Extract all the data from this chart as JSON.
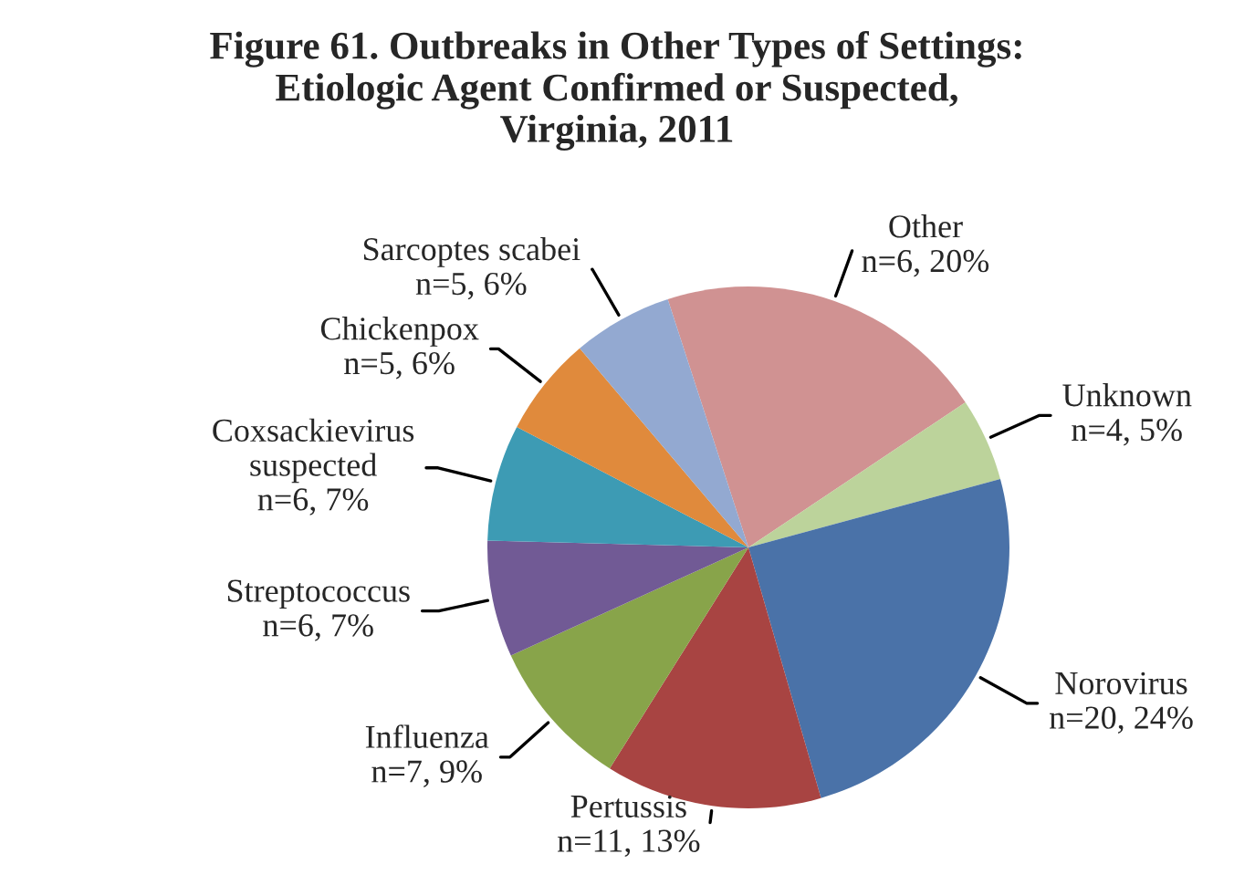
{
  "chart_data": {
    "type": "pie",
    "title": "Figure 61. Outbreaks in Other Types of Settings:\nEtiologic Agent Confirmed or Suspected,\nVirginia, 2011",
    "categories": [
      "Other",
      "Unknown",
      "Norovirus",
      "Pertussis",
      "Influenza",
      "Streptococcus",
      "Coxsackievirus\nsuspected",
      "Chickenpox",
      "Sarcoptes scabei"
    ],
    "values": [
      20,
      5,
      24,
      13,
      9,
      7,
      7,
      6,
      6
    ],
    "value_labels": [
      "n=6, 20%",
      "n=4, 5%",
      "n=20, 24%",
      "n=11, 13%",
      "n=7, 9%",
      "n=6, 7%",
      "n=6, 7%",
      "n=5, 6%",
      "n=5, 6%"
    ],
    "colors": [
      "#d09292",
      "#bcd39b",
      "#4a72a8",
      "#a84442",
      "#88a44a",
      "#715a95",
      "#3d9bb4",
      "#e08a3c",
      "#93a9d1"
    ],
    "legend": false
  }
}
